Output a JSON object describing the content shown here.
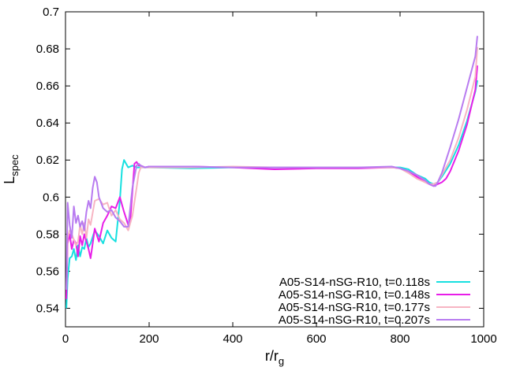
{
  "chart_data": {
    "type": "line",
    "xlabel": "r/r",
    "xlabel_sub": "g",
    "ylabel": "L",
    "ylabel_sub": "spec",
    "xlim": [
      0,
      1000
    ],
    "ylim": [
      0.53,
      0.7
    ],
    "xticks": [
      0,
      200,
      400,
      600,
      800,
      1000
    ],
    "xtick_labels": [
      "0",
      "200",
      "400",
      "600",
      "800",
      "1000"
    ],
    "yticks": [
      0.54,
      0.56,
      0.58,
      0.6,
      0.62,
      0.64,
      0.66,
      0.68,
      0.7
    ],
    "ytick_labels": [
      "0.54",
      "0.56",
      "0.58",
      "0.6",
      "0.62",
      "0.64",
      "0.66",
      "0.68",
      "0.7"
    ],
    "grid": false,
    "legend_position": "bottom-right",
    "series": [
      {
        "name": "A05-S14-nSG-R10, t=0.118s",
        "color": "#17e0e0",
        "x": [
          2,
          5,
          10,
          15,
          20,
          25,
          30,
          35,
          40,
          45,
          50,
          55,
          60,
          70,
          80,
          90,
          100,
          110,
          120,
          130,
          135,
          140,
          145,
          150,
          160,
          170,
          180,
          200,
          300,
          400,
          500,
          600,
          700,
          780,
          800,
          820,
          840,
          860,
          870,
          880,
          890,
          900,
          920,
          940,
          960,
          980,
          985
        ],
        "y": [
          0.54,
          0.556,
          0.567,
          0.568,
          0.572,
          0.566,
          0.574,
          0.568,
          0.573,
          0.572,
          0.578,
          0.573,
          0.575,
          0.582,
          0.579,
          0.575,
          0.582,
          0.578,
          0.576,
          0.598,
          0.615,
          0.62,
          0.618,
          0.616,
          0.617,
          0.616,
          0.616,
          0.616,
          0.6155,
          0.616,
          0.616,
          0.616,
          0.616,
          0.616,
          0.616,
          0.615,
          0.612,
          0.61,
          0.608,
          0.607,
          0.608,
          0.611,
          0.618,
          0.628,
          0.641,
          0.657,
          0.663
        ]
      },
      {
        "name": "A05-S14-nSG-R10, t=0.148s",
        "color": "#e81ee8",
        "x": [
          2,
          5,
          10,
          15,
          20,
          25,
          30,
          35,
          40,
          45,
          50,
          55,
          60,
          65,
          70,
          80,
          90,
          100,
          110,
          120,
          130,
          140,
          150,
          155,
          160,
          165,
          170,
          175,
          180,
          190,
          200,
          300,
          400,
          500,
          600,
          700,
          780,
          800,
          820,
          840,
          860,
          870,
          880,
          890,
          900,
          910,
          920,
          940,
          960,
          980,
          985
        ],
        "y": [
          0.545,
          0.575,
          0.58,
          0.572,
          0.577,
          0.575,
          0.568,
          0.579,
          0.574,
          0.58,
          0.576,
          0.572,
          0.567,
          0.575,
          0.583,
          0.576,
          0.586,
          0.59,
          0.595,
          0.594,
          0.6,
          0.592,
          0.585,
          0.588,
          0.603,
          0.618,
          0.619,
          0.617,
          0.617,
          0.616,
          0.6165,
          0.6165,
          0.616,
          0.615,
          0.6155,
          0.6155,
          0.616,
          0.6155,
          0.614,
          0.611,
          0.608,
          0.607,
          0.606,
          0.607,
          0.608,
          0.61,
          0.614,
          0.625,
          0.639,
          0.658,
          0.671
        ]
      },
      {
        "name": "A05-S14-nSG-R10, t=0.177s",
        "color": "#f7b5c3",
        "x": [
          2,
          5,
          10,
          15,
          20,
          25,
          30,
          35,
          40,
          45,
          50,
          55,
          60,
          70,
          80,
          90,
          100,
          110,
          120,
          130,
          140,
          150,
          160,
          170,
          175,
          180,
          190,
          200,
          300,
          400,
          500,
          600,
          700,
          780,
          800,
          820,
          840,
          860,
          870,
          880,
          890,
          900,
          920,
          940,
          960,
          980,
          985
        ],
        "y": [
          0.55,
          0.578,
          0.582,
          0.58,
          0.577,
          0.574,
          0.576,
          0.585,
          0.58,
          0.586,
          0.578,
          0.588,
          0.585,
          0.598,
          0.599,
          0.596,
          0.597,
          0.59,
          0.593,
          0.588,
          0.586,
          0.582,
          0.59,
          0.605,
          0.613,
          0.616,
          0.616,
          0.616,
          0.616,
          0.6165,
          0.616,
          0.616,
          0.616,
          0.616,
          0.6155,
          0.613,
          0.61,
          0.608,
          0.607,
          0.607,
          0.608,
          0.612,
          0.62,
          0.632,
          0.647,
          0.665,
          0.681
        ]
      },
      {
        "name": "A05-S14-nSG-R10, t=0.207s",
        "color": "#b87bf0",
        "x": [
          2,
          5,
          10,
          15,
          20,
          25,
          30,
          35,
          40,
          45,
          50,
          55,
          60,
          65,
          70,
          75,
          80,
          90,
          100,
          110,
          120,
          130,
          140,
          150,
          160,
          170,
          175,
          180,
          190,
          200,
          300,
          400,
          500,
          600,
          700,
          780,
          800,
          820,
          840,
          860,
          870,
          880,
          885,
          890,
          900,
          920,
          940,
          960,
          980,
          985
        ],
        "y": [
          0.55,
          0.597,
          0.585,
          0.578,
          0.595,
          0.586,
          0.59,
          0.584,
          0.587,
          0.582,
          0.592,
          0.598,
          0.594,
          0.605,
          0.611,
          0.608,
          0.6,
          0.594,
          0.592,
          0.593,
          0.589,
          0.587,
          0.584,
          0.584,
          0.605,
          0.617,
          0.618,
          0.617,
          0.616,
          0.6165,
          0.6165,
          0.616,
          0.616,
          0.616,
          0.616,
          0.6165,
          0.6155,
          0.614,
          0.612,
          0.609,
          0.607,
          0.606,
          0.606,
          0.608,
          0.613,
          0.627,
          0.642,
          0.659,
          0.676,
          0.687
        ]
      }
    ]
  }
}
